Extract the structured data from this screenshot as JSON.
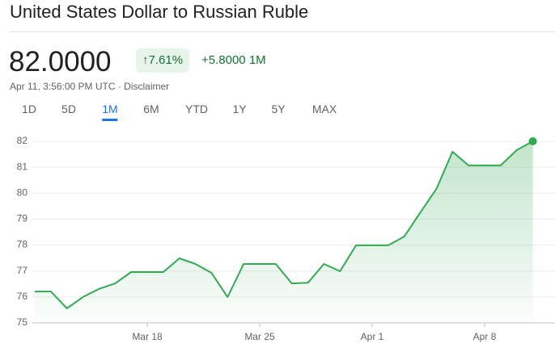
{
  "header": {
    "title": "United States Dollar to Russian Ruble",
    "price": "82.0000",
    "change_pct": "7.61%",
    "change": "+5.8000",
    "period": "1M",
    "timestamp": "Apr 11, 3:56:00 PM UTC",
    "disclaimer": "Disclaimer"
  },
  "tabs": {
    "items": [
      "1D",
      "5D",
      "1M",
      "6M",
      "YTD",
      "1Y",
      "5Y",
      "MAX"
    ],
    "active": "1M"
  },
  "chart_data": {
    "type": "area",
    "color": "#34a853",
    "x": [
      "Mar 11",
      "Mar 12",
      "Mar 13",
      "Mar 14",
      "Mar 15",
      "Mar 16",
      "Mar 17",
      "Mar 18",
      "Mar 19",
      "Mar 20",
      "Mar 21",
      "Mar 22",
      "Mar 23",
      "Mar 24",
      "Mar 25",
      "Mar 26",
      "Mar 27",
      "Mar 28",
      "Mar 29",
      "Mar 30",
      "Mar 31",
      "Apr 1",
      "Apr 2",
      "Apr 3",
      "Apr 4",
      "Apr 5",
      "Apr 6",
      "Apr 7",
      "Apr 8",
      "Apr 9",
      "Apr 10",
      "Apr 11"
    ],
    "series": [
      {
        "name": "USD/RUB",
        "color": "#34a853",
        "values": [
          76.21,
          76.21,
          75.56,
          76.0,
          76.31,
          76.52,
          76.96,
          76.96,
          76.96,
          77.49,
          77.27,
          76.93,
          76.0,
          77.27,
          77.27,
          77.27,
          76.52,
          76.55,
          77.27,
          76.99,
          77.99,
          77.99,
          77.99,
          78.33,
          79.26,
          80.16,
          81.6,
          81.07,
          81.07,
          81.07,
          81.66,
          82.0
        ]
      }
    ],
    "xticks": [
      "Mar 18",
      "Mar 25",
      "Apr 1",
      "Apr 8"
    ],
    "ylim": [
      75,
      82
    ],
    "yticks": [
      75,
      76,
      77,
      78,
      79,
      80,
      81,
      82
    ],
    "grid": true
  }
}
